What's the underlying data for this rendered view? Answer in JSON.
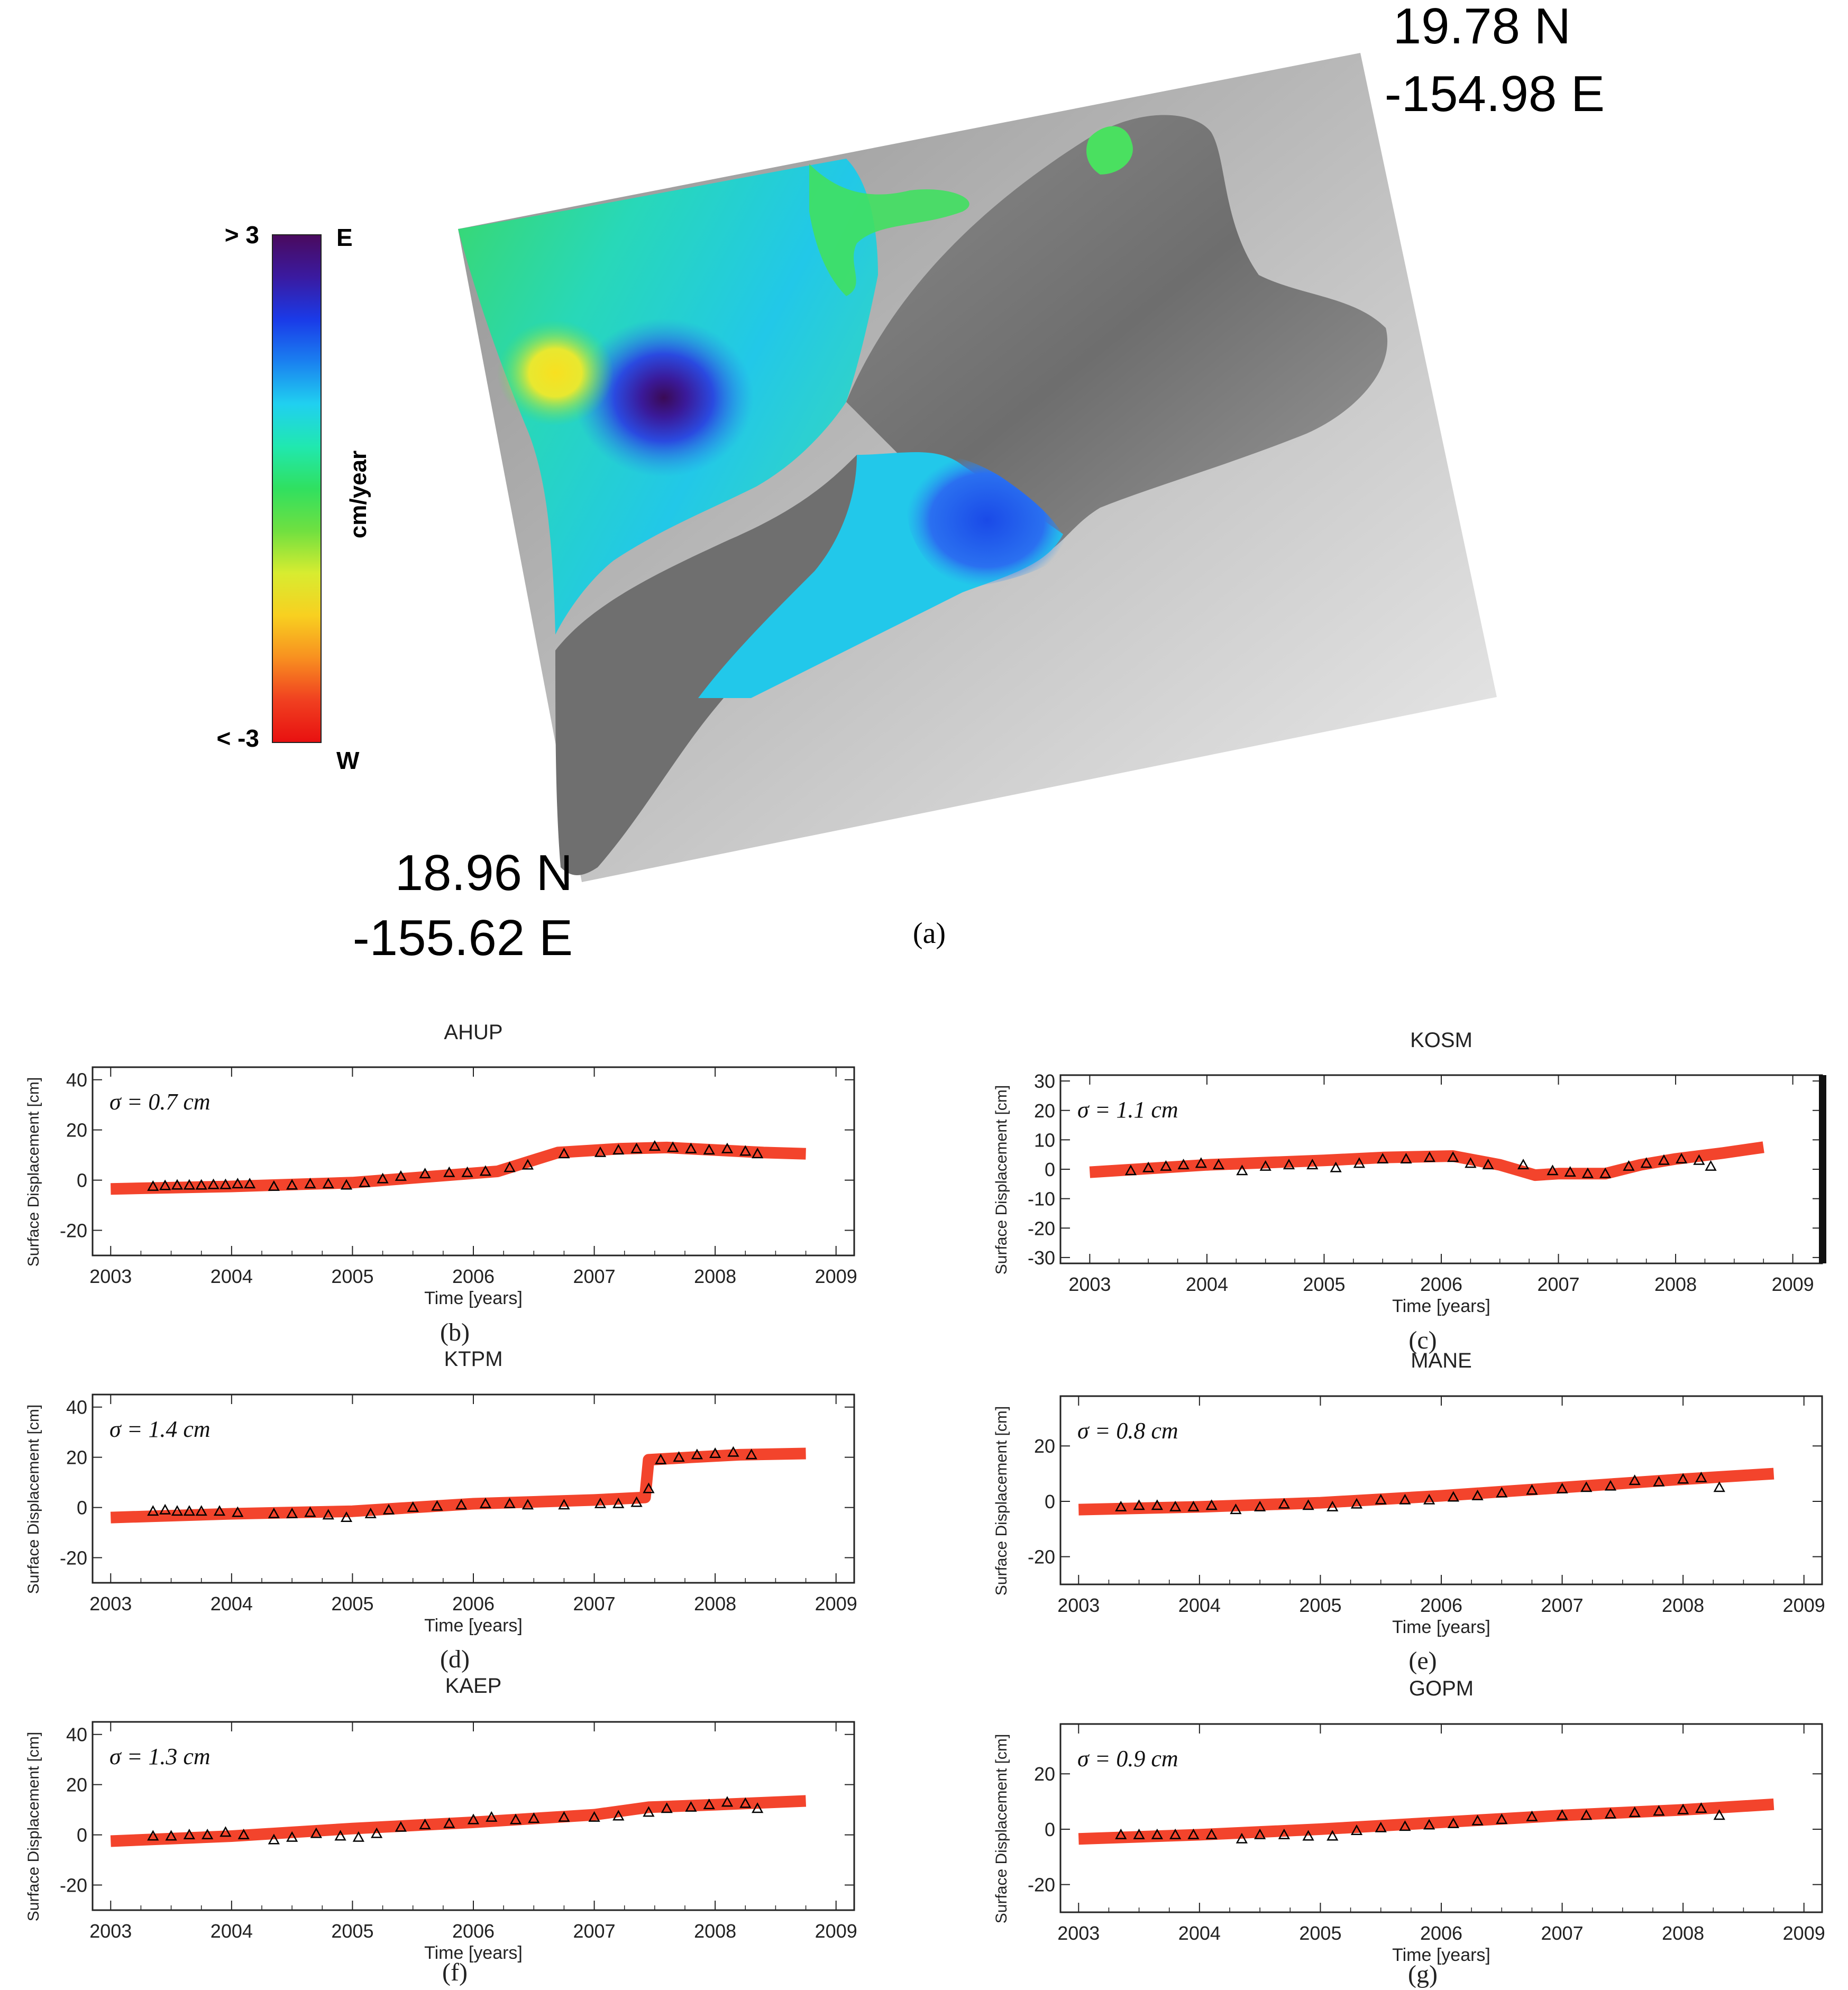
{
  "map": {
    "corner_ne": {
      "lat": "19.78 N",
      "lon": "-154.98 E"
    },
    "corner_sw": {
      "lat": "18.96 N",
      "lon": "-155.62 E"
    },
    "caption": "(a)",
    "colorbar": {
      "top_value": "> 3",
      "bottom_value": "< -3",
      "top_dir": "E",
      "bottom_dir": "W",
      "unit": "cm/year",
      "colors": [
        "#4a0a5e",
        "#3a1aa0",
        "#1a3ae8",
        "#1a80f0",
        "#20d0f0",
        "#20e8b0",
        "#30e060",
        "#70e040",
        "#d8ec30",
        "#f8d020",
        "#f89020",
        "#f04020",
        "#e81010"
      ]
    }
  },
  "series_colors": {
    "model": "#f2341a",
    "observed": "#000000"
  },
  "chart_data": [
    {
      "type": "scatter",
      "panel": "b",
      "caption": "(b)",
      "title": "AHUP",
      "sigma_text": "σ = 0.7 cm",
      "xlabel": "Time [years]",
      "ylabel": "Surface Displacement [cm]",
      "xlim": [
        2002.85,
        2009.15
      ],
      "ylim": [
        -30,
        45
      ],
      "xticks": [
        2003,
        2004,
        2005,
        2006,
        2007,
        2008,
        2009
      ],
      "yticks": [
        40,
        20,
        0,
        -20
      ],
      "series": [
        {
          "name": "model",
          "x": [
            2003.0,
            2004.0,
            2005.0,
            2006.2,
            2006.4,
            2006.7,
            2007.2,
            2007.6,
            2008.0,
            2008.4,
            2008.75
          ],
          "y": [
            -3.5,
            -2.5,
            -1.0,
            3.5,
            6.5,
            11.0,
            12.5,
            13.0,
            12.0,
            11.0,
            10.5
          ]
        },
        {
          "name": "observed",
          "x": [
            2003.35,
            2003.45,
            2003.55,
            2003.65,
            2003.75,
            2003.85,
            2003.95,
            2004.05,
            2004.15,
            2004.35,
            2004.5,
            2004.65,
            2004.8,
            2004.95,
            2005.1,
            2005.25,
            2005.4,
            2005.6,
            2005.8,
            2005.95,
            2006.1,
            2006.3,
            2006.45,
            2006.75,
            2007.05,
            2007.2,
            2007.35,
            2007.5,
            2007.65,
            2007.8,
            2007.95,
            2008.1,
            2008.25,
            2008.35
          ],
          "y": [
            -2.5,
            -2.2,
            -2.0,
            -2.0,
            -2.0,
            -1.8,
            -1.8,
            -1.5,
            -1.5,
            -2.5,
            -2.0,
            -1.5,
            -1.5,
            -2.0,
            -1.0,
            0.5,
            1.5,
            2.5,
            3.0,
            3.0,
            3.5,
            5.0,
            6.0,
            10.5,
            11.0,
            12.0,
            12.5,
            13.5,
            13.0,
            12.5,
            12.0,
            12.5,
            11.5,
            10.5
          ]
        }
      ]
    },
    {
      "type": "scatter",
      "panel": "c",
      "caption": "(c)",
      "title": "KOSM",
      "sigma_text": "σ = 1.1 cm",
      "xlabel": "Time [years]",
      "ylabel": "Surface Displacement [cm]",
      "xlim": [
        2002.75,
        2009.25
      ],
      "ylim": [
        -32,
        32
      ],
      "xticks": [
        2003,
        2004,
        2005,
        2006,
        2007,
        2008,
        2009
      ],
      "yticks": [
        30,
        20,
        10,
        0,
        -10,
        -20,
        -30
      ],
      "series": [
        {
          "name": "model",
          "x": [
            2003.0,
            2004.0,
            2005.0,
            2005.5,
            2006.1,
            2006.5,
            2006.8,
            2007.0,
            2007.4,
            2007.7,
            2008.0,
            2008.4,
            2008.75
          ],
          "y": [
            -1.0,
            1.5,
            3.0,
            4.0,
            4.5,
            1.5,
            -2.0,
            -1.5,
            -1.5,
            1.5,
            3.5,
            5.5,
            7.5
          ]
        },
        {
          "name": "observed",
          "x": [
            2003.35,
            2003.5,
            2003.65,
            2003.8,
            2003.95,
            2004.1,
            2004.3,
            2004.5,
            2004.7,
            2004.9,
            2005.1,
            2005.3,
            2005.5,
            2005.7,
            2005.9,
            2006.1,
            2006.25,
            2006.4,
            2006.7,
            2006.95,
            2007.1,
            2007.25,
            2007.4,
            2007.6,
            2007.75,
            2007.9,
            2008.05,
            2008.2,
            2008.3
          ],
          "y": [
            -0.5,
            0.5,
            1.0,
            1.5,
            2.0,
            1.5,
            -0.5,
            1.0,
            1.5,
            1.5,
            0.5,
            2.0,
            3.5,
            3.5,
            4.0,
            4.0,
            2.0,
            1.5,
            1.5,
            -0.5,
            -1.0,
            -1.5,
            -1.5,
            1.0,
            2.0,
            3.0,
            3.5,
            3.0,
            1.0
          ]
        }
      ]
    },
    {
      "type": "scatter",
      "panel": "d",
      "caption": "(d)",
      "title": "KTPM",
      "sigma_text": "σ = 1.4 cm",
      "xlabel": "Time [years]",
      "ylabel": "Surface Displacement [cm]",
      "xlim": [
        2002.85,
        2009.15
      ],
      "ylim": [
        -30,
        45
      ],
      "xticks": [
        2003,
        2004,
        2005,
        2006,
        2007,
        2008,
        2009
      ],
      "yticks": [
        40,
        20,
        0,
        -20
      ],
      "series": [
        {
          "name": "model",
          "x": [
            2003.0,
            2004.0,
            2005.0,
            2006.0,
            2007.0,
            2007.42,
            2007.45,
            2007.8,
            2008.2,
            2008.75
          ],
          "y": [
            -4.0,
            -2.5,
            -1.5,
            1.5,
            3.0,
            4.0,
            19.0,
            20.0,
            21.0,
            21.5
          ]
        },
        {
          "name": "observed",
          "x": [
            2003.35,
            2003.45,
            2003.55,
            2003.65,
            2003.75,
            2003.9,
            2004.05,
            2004.35,
            2004.5,
            2004.65,
            2004.8,
            2004.95,
            2005.15,
            2005.3,
            2005.5,
            2005.7,
            2005.9,
            2006.1,
            2006.3,
            2006.45,
            2006.75,
            2007.05,
            2007.2,
            2007.35,
            2007.45,
            2007.55,
            2007.7,
            2007.85,
            2008.0,
            2008.15,
            2008.3
          ],
          "y": [
            -1.5,
            -1.0,
            -1.5,
            -1.5,
            -1.5,
            -1.5,
            -2.0,
            -2.5,
            -2.5,
            -2.0,
            -3.0,
            -4.0,
            -2.5,
            -1.0,
            0.0,
            0.5,
            1.0,
            1.5,
            1.5,
            1.0,
            1.0,
            1.5,
            1.5,
            2.0,
            7.5,
            19.0,
            20.0,
            21.0,
            21.5,
            22.0,
            21.0
          ]
        }
      ]
    },
    {
      "type": "scatter",
      "panel": "e",
      "caption": "(e)",
      "title": "MANE",
      "sigma_text": "σ = 0.8 cm",
      "xlabel": "Time [years]",
      "ylabel": "Surface Displacement [cm]",
      "xlim": [
        2002.85,
        2009.15
      ],
      "ylim": [
        -30,
        38
      ],
      "xticks": [
        2003,
        2004,
        2005,
        2006,
        2007,
        2008,
        2009
      ],
      "yticks": [
        20,
        0,
        -20
      ],
      "series": [
        {
          "name": "model",
          "x": [
            2003.0,
            2004.0,
            2005.0,
            2006.0,
            2007.0,
            2008.0,
            2008.75
          ],
          "y": [
            -3.0,
            -2.0,
            -0.5,
            2.0,
            5.0,
            8.0,
            10.0
          ]
        },
        {
          "name": "observed",
          "x": [
            2003.35,
            2003.5,
            2003.65,
            2003.8,
            2003.95,
            2004.1,
            2004.3,
            2004.5,
            2004.7,
            2004.9,
            2005.1,
            2005.3,
            2005.5,
            2005.7,
            2005.9,
            2006.1,
            2006.3,
            2006.5,
            2006.75,
            2007.0,
            2007.2,
            2007.4,
            2007.6,
            2007.8,
            2008.0,
            2008.15,
            2008.3
          ],
          "y": [
            -2.0,
            -1.5,
            -1.5,
            -2.0,
            -2.0,
            -1.5,
            -3.0,
            -2.0,
            -1.0,
            -1.5,
            -2.0,
            -1.0,
            0.5,
            0.5,
            0.5,
            1.5,
            2.0,
            3.0,
            4.0,
            4.5,
            5.0,
            5.5,
            7.5,
            7.0,
            8.0,
            8.5,
            5.0
          ]
        }
      ]
    },
    {
      "type": "scatter",
      "panel": "f",
      "caption": "(f)",
      "title": "KAEP",
      "sigma_text": "σ = 1.3 cm",
      "xlabel": "Time [years]",
      "ylabel": "Surface Displacement [cm]",
      "xlim": [
        2002.85,
        2009.15
      ],
      "ylim": [
        -30,
        45
      ],
      "xticks": [
        2003,
        2004,
        2005,
        2006,
        2007,
        2008,
        2009
      ],
      "yticks": [
        40,
        20,
        0,
        -20
      ],
      "series": [
        {
          "name": "model",
          "x": [
            2003.0,
            2004.0,
            2005.0,
            2006.0,
            2007.0,
            2007.45,
            2008.0,
            2008.75
          ],
          "y": [
            -2.5,
            -0.5,
            2.5,
            5.0,
            8.0,
            11.0,
            12.0,
            13.5
          ]
        },
        {
          "name": "observed",
          "x": [
            2003.35,
            2003.5,
            2003.65,
            2003.8,
            2003.95,
            2004.1,
            2004.35,
            2004.5,
            2004.7,
            2004.9,
            2005.05,
            2005.2,
            2005.4,
            2005.6,
            2005.8,
            2006.0,
            2006.15,
            2006.35,
            2006.5,
            2006.75,
            2007.0,
            2007.2,
            2007.45,
            2007.6,
            2007.8,
            2007.95,
            2008.1,
            2008.25,
            2008.35
          ],
          "y": [
            -0.5,
            -0.5,
            0.0,
            0.0,
            1.0,
            0.0,
            -2.0,
            -1.0,
            0.5,
            -0.5,
            -1.0,
            0.5,
            3.0,
            4.0,
            4.5,
            6.0,
            7.0,
            6.0,
            6.5,
            7.0,
            7.0,
            7.5,
            9.0,
            10.5,
            11.0,
            12.0,
            13.0,
            12.5,
            10.5
          ]
        }
      ]
    },
    {
      "type": "scatter",
      "panel": "g",
      "caption": "(g)",
      "title": "GOPM",
      "sigma_text": "σ = 0.9 cm",
      "xlabel": "Time [years]",
      "ylabel": "Surface Displacement [cm]",
      "xlim": [
        2002.85,
        2009.15
      ],
      "ylim": [
        -30,
        38
      ],
      "xticks": [
        2003,
        2004,
        2005,
        2006,
        2007,
        2008,
        2009
      ],
      "yticks": [
        20,
        0,
        -20
      ],
      "series": [
        {
          "name": "model",
          "x": [
            2003.0,
            2004.0,
            2005.0,
            2006.0,
            2007.0,
            2008.0,
            2008.75
          ],
          "y": [
            -3.5,
            -2.0,
            0.0,
            2.5,
            5.0,
            7.0,
            9.0
          ]
        },
        {
          "name": "observed",
          "x": [
            2003.35,
            2003.5,
            2003.65,
            2003.8,
            2003.95,
            2004.1,
            2004.35,
            2004.5,
            2004.7,
            2004.9,
            2005.1,
            2005.3,
            2005.5,
            2005.7,
            2005.9,
            2006.1,
            2006.3,
            2006.5,
            2006.75,
            2007.0,
            2007.2,
            2007.4,
            2007.6,
            2007.8,
            2008.0,
            2008.15,
            2008.3
          ],
          "y": [
            -2.0,
            -2.0,
            -2.0,
            -2.0,
            -2.0,
            -2.0,
            -3.5,
            -2.0,
            -2.0,
            -2.5,
            -2.5,
            -0.5,
            0.5,
            1.0,
            1.5,
            2.0,
            3.0,
            3.5,
            4.5,
            5.0,
            5.0,
            5.5,
            6.0,
            6.5,
            7.0,
            7.5,
            5.0
          ]
        }
      ]
    }
  ]
}
